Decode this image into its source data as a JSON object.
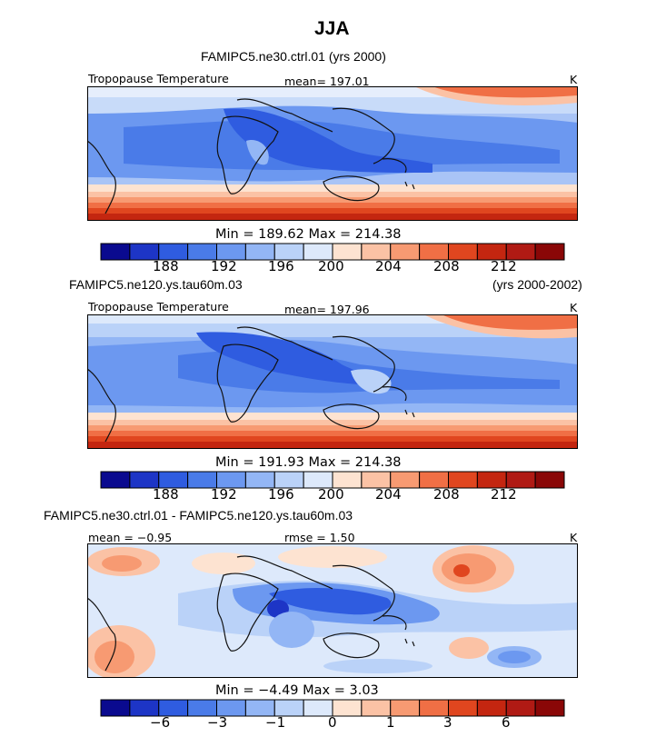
{
  "figure": {
    "title": "JJA"
  },
  "chart_data": [
    {
      "type": "heatmap",
      "title": "FAMIPC5.ne30.ctrl.01 (yrs 2000)",
      "case": "FAMIPC5.ne30.ctrl.01",
      "years": "(yrs 2000)",
      "variable": "Tropopause Temperature",
      "units": "K",
      "mean_label": "mean=  197.01",
      "mean": 197.01,
      "min_max_label": "Min  =  189.62  Max  =  214.38",
      "min": 189.62,
      "max": 214.38,
      "colorbar": {
        "colors": [
          "#0a0a8f",
          "#1d35c6",
          "#2f5ce0",
          "#4a7be8",
          "#6c98f0",
          "#93b6f5",
          "#bad2f8",
          "#dde9fb",
          "#fde3d1",
          "#fbc2a5",
          "#f79a72",
          "#f06f45",
          "#e0461f",
          "#c42610",
          "#b01a14",
          "#8a0707"
        ],
        "tick_labels": [
          "188",
          "192",
          "196",
          "200",
          "204",
          "208",
          "212"
        ]
      }
    },
    {
      "type": "heatmap",
      "title": "FAMIPC5.ne120.ys.tau60m.03 (yrs 2000-2002)",
      "case": "FAMIPC5.ne120.ys.tau60m.03",
      "years": "(yrs 2000-2002)",
      "variable": "Tropopause Temperature",
      "units": "K",
      "mean_label": "mean=  197.96",
      "mean": 197.96,
      "min_max_label": "Min  =  191.93  Max  =  214.38",
      "min": 191.93,
      "max": 214.38,
      "colorbar": {
        "colors": [
          "#0a0a8f",
          "#1d35c6",
          "#2f5ce0",
          "#4a7be8",
          "#6c98f0",
          "#93b6f5",
          "#bad2f8",
          "#dde9fb",
          "#fde3d1",
          "#fbc2a5",
          "#f79a72",
          "#f06f45",
          "#e0461f",
          "#c42610",
          "#b01a14",
          "#8a0707"
        ],
        "tick_labels": [
          "188",
          "192",
          "196",
          "200",
          "204",
          "208",
          "212"
        ]
      }
    },
    {
      "type": "heatmap",
      "title": "FAMIPC5.ne30.ctrl.01 - FAMIPC5.ne120.ys.tau60m.03",
      "case": "FAMIPC5.ne30.ctrl.01 - FAMIPC5.ne120.ys.tau60m.03",
      "units": "K",
      "mean_label": "mean =   −0.95",
      "mean": -0.95,
      "rmse_label": "rmse =   1.50",
      "rmse": 1.5,
      "min_max_label": "Min  =   −4.49  Max  =      3.03",
      "min": -4.49,
      "max": 3.03,
      "colorbar": {
        "colors": [
          "#0a0a8f",
          "#1d35c6",
          "#2f5ce0",
          "#4a7be8",
          "#6c98f0",
          "#93b6f5",
          "#bad2f8",
          "#dde9fb",
          "#fde3d1",
          "#fbc2a5",
          "#f79a72",
          "#f06f45",
          "#e0461f",
          "#c42610",
          "#b01a14",
          "#8a0707"
        ],
        "tick_labels": [
          "−6",
          "−3",
          "−1",
          "0",
          "1",
          "3",
          "6"
        ]
      }
    }
  ]
}
